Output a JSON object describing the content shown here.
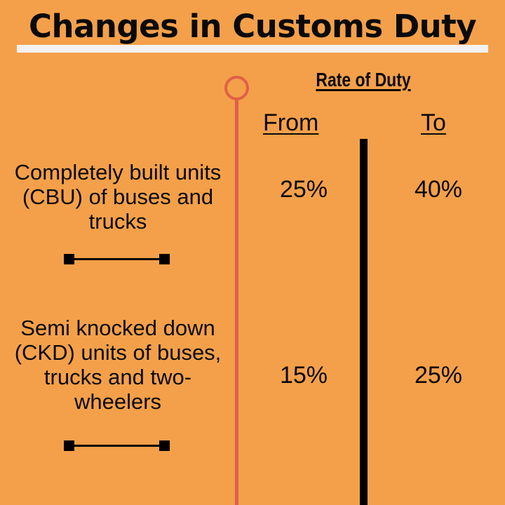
{
  "title": "Changes in Customs Duty",
  "header": {
    "rate_heading": "Rate of Duty",
    "from_label": "From",
    "to_label": "To"
  },
  "rows": [
    {
      "label": "Completely built units (CBU) of buses and trucks",
      "label_lines": [
        "Completely built units",
        "(CBU) of buses and",
        "trucks"
      ],
      "from": "25%",
      "to": "40%"
    },
    {
      "label": "Semi knocked down (CKD) units of buses, trucks and two-wheelers",
      "label_lines": [
        "Semi knocked down",
        "(CKD) units of buses,",
        "trucks and two-",
        "wheelers"
      ],
      "from": "15%",
      "to": "25%"
    }
  ],
  "colors": {
    "background": "#f4a04a",
    "timeline": "#e0604a",
    "title_bar": "#f2f2f2",
    "text": "#0a0a0a",
    "divider": "#000000"
  },
  "icons": {
    "timeline_marker": "circle-icon",
    "connector": "connector-icon"
  }
}
